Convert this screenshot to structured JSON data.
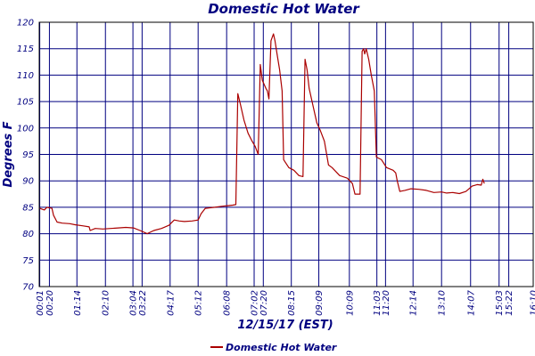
{
  "chart_data": {
    "type": "line",
    "title": "Domestic Hot Water",
    "xlabel": "12/15/17 (EST)",
    "ylabel": "Degrees F",
    "ylim": [
      70,
      120
    ],
    "xlim": [
      0,
      970
    ],
    "grid": true,
    "yticks": [
      70,
      75,
      80,
      85,
      90,
      95,
      100,
      105,
      110,
      115,
      120
    ],
    "xticks": [
      {
        "label": "00:01",
        "min": 1
      },
      {
        "label": "00:20",
        "min": 20
      },
      {
        "label": "01:14",
        "min": 74
      },
      {
        "label": "02:10",
        "min": 130
      },
      {
        "label": "03:04",
        "min": 184
      },
      {
        "label": "03:22",
        "min": 202
      },
      {
        "label": "04:17",
        "min": 257
      },
      {
        "label": "05:12",
        "min": 312
      },
      {
        "label": "06:08",
        "min": 368
      },
      {
        "label": "07:02",
        "min": 422
      },
      {
        "label": "07:20",
        "min": 440
      },
      {
        "label": "08:15",
        "min": 495
      },
      {
        "label": "09:09",
        "min": 549
      },
      {
        "label": "10:09",
        "min": 609
      },
      {
        "label": "11:03",
        "min": 663
      },
      {
        "label": "11:20",
        "min": 680
      },
      {
        "label": "12:14",
        "min": 734
      },
      {
        "label": "13:10",
        "min": 790
      },
      {
        "label": "14:07",
        "min": 847
      },
      {
        "label": "15:03",
        "min": 903
      },
      {
        "label": "15:22",
        "min": 922
      },
      {
        "label": "16:10",
        "min": 970
      }
    ],
    "legend": {
      "label": "Domestic Hot Water",
      "color": "#aa0000",
      "position": "bottom-center"
    },
    "series": [
      {
        "name": "Domestic Hot Water",
        "color": "#aa0000",
        "points": [
          [
            1,
            84.8
          ],
          [
            10,
            84.5
          ],
          [
            15,
            85.0
          ],
          [
            25,
            84.8
          ],
          [
            28,
            83.5
          ],
          [
            35,
            82.2
          ],
          [
            45,
            82.0
          ],
          [
            60,
            81.9
          ],
          [
            70,
            81.7
          ],
          [
            85,
            81.5
          ],
          [
            98,
            81.3
          ],
          [
            100,
            80.6
          ],
          [
            110,
            81.0
          ],
          [
            125,
            80.9
          ],
          [
            140,
            81.0
          ],
          [
            155,
            81.1
          ],
          [
            170,
            81.2
          ],
          [
            185,
            81.1
          ],
          [
            198,
            80.6
          ],
          [
            212,
            80.0
          ],
          [
            225,
            80.6
          ],
          [
            240,
            81.0
          ],
          [
            255,
            81.6
          ],
          [
            265,
            82.6
          ],
          [
            275,
            82.4
          ],
          [
            285,
            82.3
          ],
          [
            300,
            82.4
          ],
          [
            312,
            82.6
          ],
          [
            318,
            83.8
          ],
          [
            326,
            84.8
          ],
          [
            335,
            84.9
          ],
          [
            345,
            85.0
          ],
          [
            360,
            85.2
          ],
          [
            370,
            85.3
          ],
          [
            380,
            85.4
          ],
          [
            386,
            85.5
          ],
          [
            390,
            106.5
          ],
          [
            395,
            104.5
          ],
          [
            402,
            101.5
          ],
          [
            410,
            99.0
          ],
          [
            418,
            97.5
          ],
          [
            424,
            96.5
          ],
          [
            430,
            95.0
          ],
          [
            434,
            112.0
          ],
          [
            438,
            109.0
          ],
          [
            445,
            107.5
          ],
          [
            448,
            107.0
          ],
          [
            451,
            105.5
          ],
          [
            455,
            116.5
          ],
          [
            460,
            117.8
          ],
          [
            463,
            116.5
          ],
          [
            467,
            114.0
          ],
          [
            472,
            111.0
          ],
          [
            477,
            107.0
          ],
          [
            480,
            94.0
          ],
          [
            490,
            92.5
          ],
          [
            500,
            92.0
          ],
          [
            510,
            91.0
          ],
          [
            518,
            90.8
          ],
          [
            522,
            113.0
          ],
          [
            526,
            111.0
          ],
          [
            530,
            107.5
          ],
          [
            538,
            104.0
          ],
          [
            545,
            101.0
          ],
          [
            552,
            99.5
          ],
          [
            560,
            97.5
          ],
          [
            568,
            93.0
          ],
          [
            575,
            92.5
          ],
          [
            590,
            91.0
          ],
          [
            605,
            90.5
          ],
          [
            615,
            89.5
          ],
          [
            620,
            87.5
          ],
          [
            630,
            87.5
          ],
          [
            634,
            114.5
          ],
          [
            637,
            115.0
          ],
          [
            639,
            114.0
          ],
          [
            642,
            115.0
          ],
          [
            647,
            113.0
          ],
          [
            652,
            110.0
          ],
          [
            658,
            107.0
          ],
          [
            662,
            94.5
          ],
          [
            672,
            94.0
          ],
          [
            682,
            92.5
          ],
          [
            695,
            92.0
          ],
          [
            700,
            91.5
          ],
          [
            703,
            90.0
          ],
          [
            708,
            88.0
          ],
          [
            718,
            88.2
          ],
          [
            730,
            88.5
          ],
          [
            745,
            88.4
          ],
          [
            760,
            88.2
          ],
          [
            775,
            87.8
          ],
          [
            790,
            87.9
          ],
          [
            800,
            87.7
          ],
          [
            812,
            87.8
          ],
          [
            825,
            87.6
          ],
          [
            838,
            88.0
          ],
          [
            850,
            89.0
          ],
          [
            860,
            89.3
          ],
          [
            868,
            89.2
          ],
          [
            871,
            90.3
          ],
          [
            874,
            89.5
          ]
        ]
      }
    ]
  }
}
